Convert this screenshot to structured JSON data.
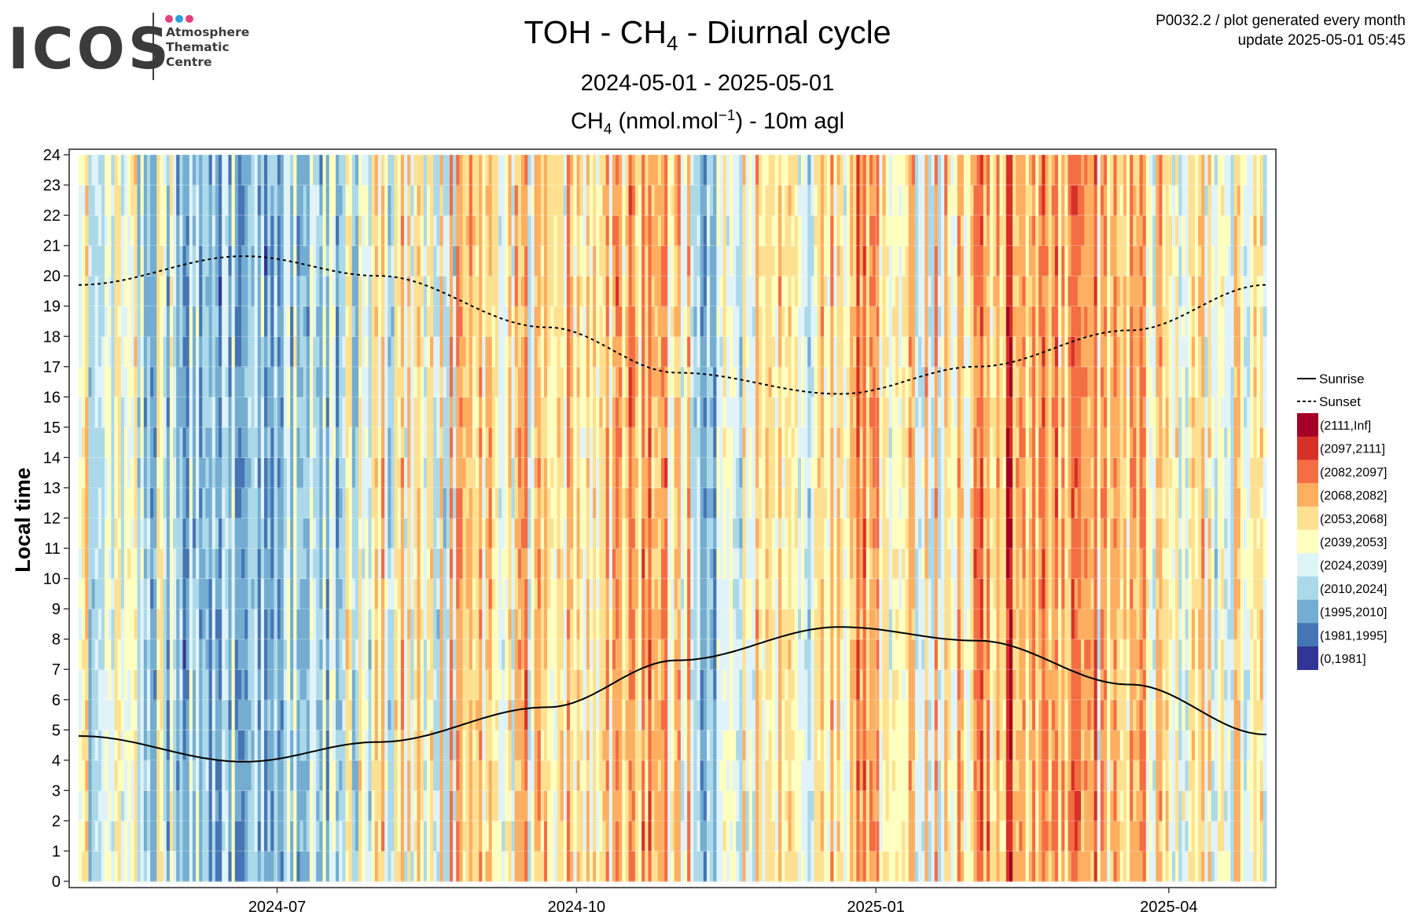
{
  "logo": {
    "word": "ICOS",
    "lines": [
      "Atmosphere",
      "Thematic",
      "Centre"
    ],
    "dot_colors": [
      "#e63f7c",
      "#2f9fe0",
      "#e63f7c"
    ]
  },
  "header": {
    "title_pre": "TOH - CH",
    "title_sub": "4",
    "title_post": " - Diurnal cycle",
    "period": "2024-05-01 - 2025-05-01",
    "sub_pre": "CH",
    "sub_sub": "4",
    "sub_mid": " (nmol.mol",
    "sub_sup": "−1",
    "sub_post": ") - 10m agl"
  },
  "meta": {
    "line1": "P0032.2 / plot generated every month",
    "line2": "update  2025-05-01 05:45"
  },
  "chart_data": {
    "type": "heatmap",
    "ylabel": "Local time",
    "xlabel": "",
    "x_range": [
      "2024-05-01",
      "2025-05-01"
    ],
    "y_range": [
      0,
      24
    ],
    "yticks": [
      "0",
      "1",
      "2",
      "3",
      "4",
      "5",
      "6",
      "7",
      "8",
      "9",
      "10",
      "11",
      "12",
      "13",
      "14",
      "15",
      "16",
      "17",
      "18",
      "19",
      "20",
      "21",
      "22",
      "23",
      "24"
    ],
    "xticks": [
      {
        "label": "2024-07",
        "date": "2024-07-01"
      },
      {
        "label": "2024-10",
        "date": "2024-10-01"
      },
      {
        "label": "2025-01",
        "date": "2025-01-01"
      },
      {
        "label": "2025-04",
        "date": "2025-04-01"
      }
    ],
    "grid": true,
    "legend_position": "right",
    "line_series": [
      {
        "name": "Sunrise",
        "style": "solid",
        "x": [
          "2024-05-01",
          "2024-06-21",
          "2024-08-01",
          "2024-09-22",
          "2024-11-01",
          "2024-12-21",
          "2025-02-01",
          "2025-03-20",
          "2025-05-01"
        ],
        "y": [
          4.8,
          3.95,
          4.6,
          5.75,
          7.3,
          8.4,
          7.95,
          6.5,
          4.85
        ]
      },
      {
        "name": "Sunset",
        "style": "dotted",
        "x": [
          "2024-05-01",
          "2024-06-21",
          "2024-08-01",
          "2024-09-22",
          "2024-11-01",
          "2024-12-21",
          "2025-02-01",
          "2025-03-20",
          "2025-05-01"
        ],
        "y": [
          19.7,
          20.65,
          20.0,
          18.3,
          16.8,
          16.1,
          17.0,
          18.2,
          19.7
        ]
      }
    ],
    "color_bins": [
      {
        "label": "(2111,Inf]",
        "color": "#a50026"
      },
      {
        "label": "(2097,2111]",
        "color": "#d73027"
      },
      {
        "label": "(2082,2097]",
        "color": "#f46d43"
      },
      {
        "label": "(2068,2082]",
        "color": "#fdae61"
      },
      {
        "label": "(2053,2068]",
        "color": "#fee090"
      },
      {
        "label": "(2039,2053]",
        "color": "#ffffbf"
      },
      {
        "label": "(2024,2039]",
        "color": "#e0f3f8"
      },
      {
        "label": "(2010,2024]",
        "color": "#abd9e9"
      },
      {
        "label": "(1995,2010]",
        "color": "#74add1"
      },
      {
        "label": "(1981,1995]",
        "color": "#4575b4"
      },
      {
        "label": "(0,1981]",
        "color": "#313695"
      }
    ],
    "daily_level_profile": {
      "start": "2024-05-01",
      "anchors_date": [
        "2024-05-01",
        "2024-06-01",
        "2024-06-20",
        "2024-07-10",
        "2024-08-01",
        "2024-09-01",
        "2024-09-20",
        "2024-10-10",
        "2024-11-01",
        "2024-11-10",
        "2024-11-25",
        "2024-12-10",
        "2024-12-25",
        "2025-01-10",
        "2025-01-25",
        "2025-02-10",
        "2025-03-01",
        "2025-03-20",
        "2025-04-10",
        "2025-05-01"
      ],
      "anchors_bin": [
        5.5,
        6.4,
        7.3,
        6.8,
        5.2,
        4.5,
        4.2,
        3.6,
        3.6,
        7.0,
        4.0,
        5.0,
        3.5,
        4.5,
        4.4,
        2.5,
        3.6,
        4.0,
        5.0,
        5.2
      ]
    }
  }
}
